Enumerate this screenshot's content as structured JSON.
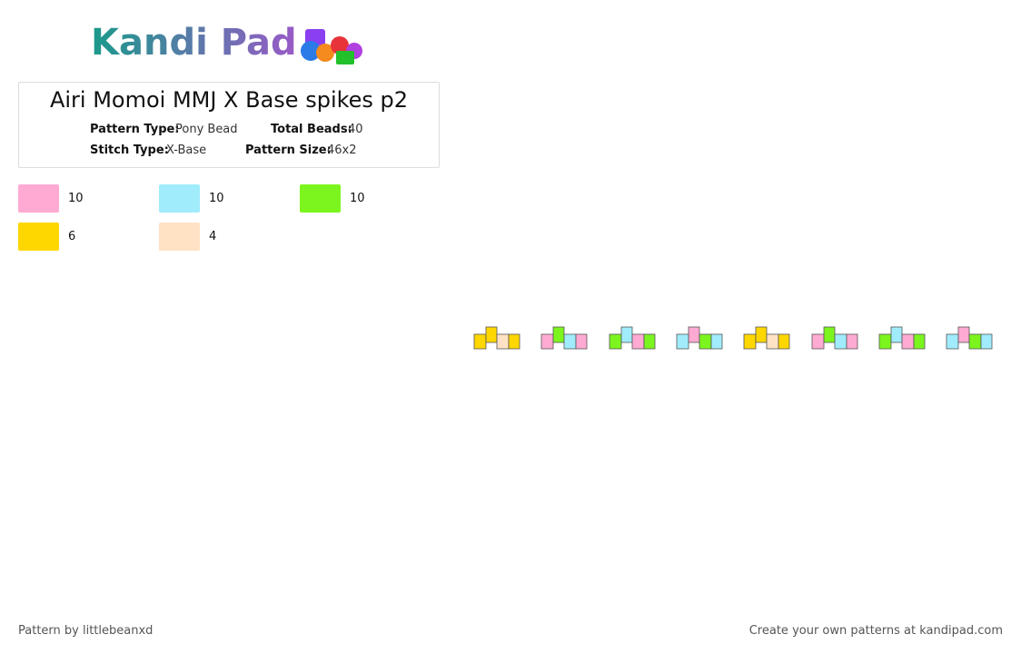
{
  "logo": "Kandi Pad",
  "title": "Airi Momoi MMJ X Base spikes p2",
  "info": [
    {
      "label": "Pattern Type:",
      "value": "Pony Bead"
    },
    {
      "label": "Total Beads:",
      "value": "40"
    },
    {
      "label": "Stitch Type:",
      "value": "X-Base"
    },
    {
      "label": "Pattern Size:",
      "value": "46x2"
    }
  ],
  "colors": [
    {
      "color": "#ffaad2",
      "count": 10
    },
    {
      "color": "#a0ecfc",
      "count": 10
    },
    {
      "color": "#7cf51f",
      "count": 10
    },
    {
      "color": "#ffd700",
      "count": 6
    },
    {
      "color": "#ffe2c4",
      "count": 4
    }
  ],
  "footer": {
    "left": "Pattern by littlebeanxd",
    "right": "Create your own patterns at kandipad.com"
  }
}
